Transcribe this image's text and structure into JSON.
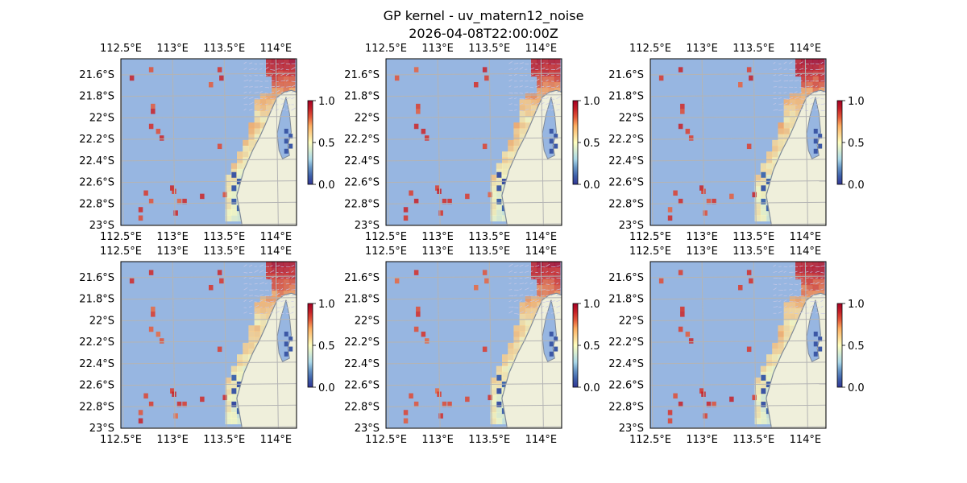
{
  "title_line1": "GP kernel - uv_matern12_noise",
  "title_line2": "2026-04-08T22:00:00Z",
  "chart_data": {
    "type": "heatmap",
    "panel_count": 6,
    "layout": "2 rows x 3 columns",
    "x_tick_labels": [
      "112.5°E",
      "113°E",
      "113.5°E",
      "114°E"
    ],
    "x_ticks": [
      112.5,
      113.0,
      113.5,
      114.0
    ],
    "y_tick_labels": [
      "21.6°S",
      "21.8°S",
      "22°S",
      "22.2°S",
      "22.4°S",
      "22.6°S",
      "22.8°S",
      "23°S"
    ],
    "y_ticks": [
      -21.6,
      -21.8,
      -22.0,
      -22.2,
      -22.4,
      -22.6,
      -22.8,
      -23.0
    ],
    "xlim": [
      112.5,
      114.2
    ],
    "ylim": [
      -23.0,
      -21.45
    ],
    "grid": true,
    "colorbar": {
      "tick_labels": [
        "0.0",
        "0.5",
        "1.0"
      ],
      "ticks": [
        0.0,
        0.5,
        1.0
      ],
      "range": [
        0.0,
        1.0
      ],
      "colormap": "RdYlBu_r"
    },
    "colors": {
      "ocean": "#97b6e1",
      "land": "#efefdb",
      "coast": "#7f8a99",
      "grid": "#b4b4b4"
    }
  }
}
